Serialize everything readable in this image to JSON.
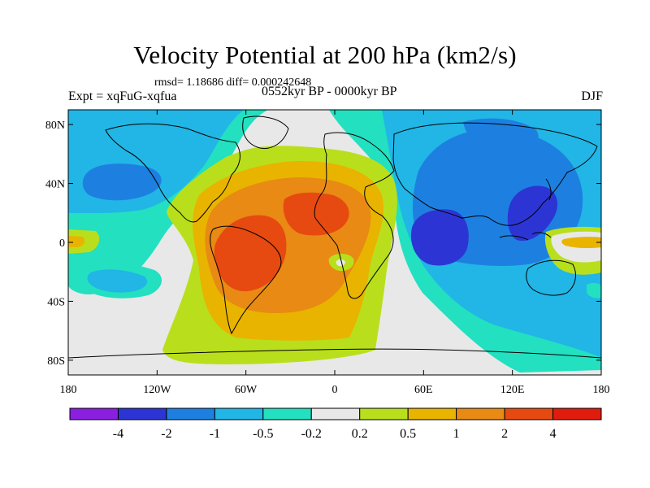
{
  "header": {
    "title": "Velocity Potential at 200 hPa (km2/s)",
    "rmsd_text": "rmsd= 1.18686 diff= 0.000242648",
    "expt_text": "Expt = xqFuG-xqfua",
    "period_text": "0552kyr BP - 0000kyr BP",
    "season_text": "DJF"
  },
  "axes": {
    "x_ticks": [
      {
        "value": -180,
        "label": "180"
      },
      {
        "value": -120,
        "label": "120W"
      },
      {
        "value": -60,
        "label": "60W"
      },
      {
        "value": 0,
        "label": "0"
      },
      {
        "value": 60,
        "label": "60E"
      },
      {
        "value": 120,
        "label": "120E"
      },
      {
        "value": 180,
        "label": "180"
      }
    ],
    "y_ticks": [
      {
        "value": 80,
        "label": "80N"
      },
      {
        "value": 40,
        "label": "40N"
      },
      {
        "value": 0,
        "label": "0"
      },
      {
        "value": -40,
        "label": "40S"
      },
      {
        "value": -80,
        "label": "80S"
      }
    ],
    "lon_range": [
      -180,
      180
    ],
    "lat_range": [
      -90,
      90
    ]
  },
  "colorbar": {
    "labels": [
      "-4",
      "-2",
      "-1",
      "-0.5",
      "-0.2",
      "0.2",
      "0.5",
      "1",
      "2",
      "4"
    ],
    "colors": [
      "#8b1fe0",
      "#2c35d4",
      "#1d80e0",
      "#21b6e6",
      "#22e0c0",
      "#e8e8e8",
      "#b9df1c",
      "#e8b400",
      "#e88a14",
      "#e64a10",
      "#e01c0e"
    ]
  },
  "chart_data": {
    "type": "heatmap",
    "title": "Velocity Potential at 200 hPa (km2/s)",
    "variable": "200 hPa velocity potential difference",
    "units": "km2/s",
    "season": "DJF",
    "levels": [
      -4,
      -2,
      -1,
      -0.5,
      -0.2,
      0.2,
      0.5,
      1,
      2,
      4
    ],
    "features": [
      {
        "region": "South America / tropical Atlantic",
        "value_range": [
          2,
          4
        ],
        "sign": "positive"
      },
      {
        "region": "North Africa / Sahara",
        "value_range": [
          2,
          4
        ],
        "sign": "positive"
      },
      {
        "region": "Atlantic basin and Africa",
        "value_range": [
          1,
          2
        ],
        "sign": "positive"
      },
      {
        "region": "Indian Ocean",
        "value_range": [
          -4,
          -2
        ],
        "sign": "negative"
      },
      {
        "region": "Maritime Continent / Philippines",
        "value_range": [
          -4,
          -2
        ],
        "sign": "negative"
      },
      {
        "region": "Asia and western Pacific",
        "value_range": [
          -2,
          -1
        ],
        "sign": "negative"
      },
      {
        "region": "North Pacific",
        "value_range": [
          -2,
          -1
        ],
        "sign": "negative"
      },
      {
        "region": "Southern Ocean",
        "value_range": [
          -0.2,
          0.2
        ],
        "sign": "neutral"
      }
    ]
  }
}
